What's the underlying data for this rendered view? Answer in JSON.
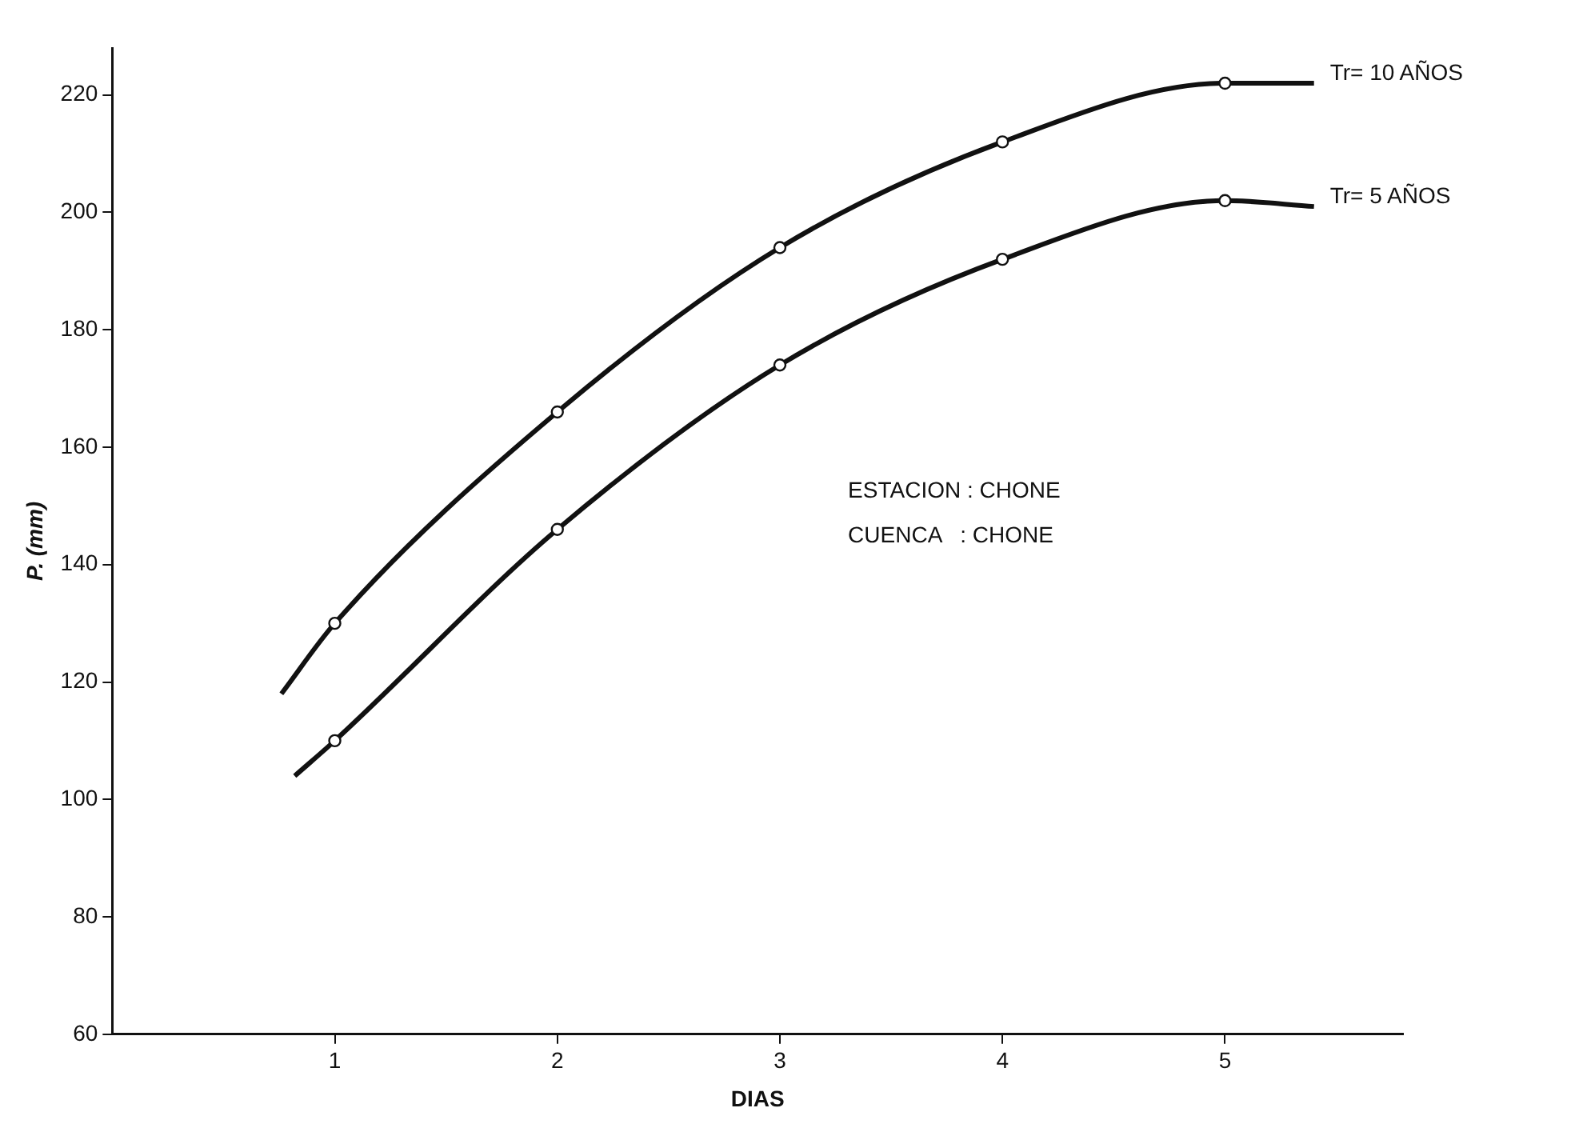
{
  "chart_data": {
    "type": "line",
    "xlabel": "DIAS",
    "ylabel": "P. (mm)",
    "xlim": [
      0,
      5.8
    ],
    "xticks": [
      1,
      2,
      3,
      4,
      5
    ],
    "ylim": [
      60,
      228
    ],
    "yticks": [
      60,
      80,
      100,
      120,
      140,
      160,
      180,
      200,
      220
    ],
    "grid": false,
    "legend": false,
    "marker": "circle",
    "annotations": [
      "ESTACION : CHONE",
      "CUENCA   : CHONE"
    ],
    "series": [
      {
        "name": "Tr= 10 AÑOS",
        "color": "#111111",
        "x": [
          0.76,
          1,
          2,
          3,
          4,
          5,
          5.4
        ],
        "values": [
          118,
          130,
          166,
          194,
          212,
          222,
          222
        ]
      },
      {
        "name": "Tr= 5 AÑOS",
        "color": "#111111",
        "x": [
          0.82,
          1,
          2,
          3,
          4,
          5,
          5.4
        ],
        "values": [
          104,
          110,
          146,
          174,
          192,
          202,
          201
        ]
      }
    ]
  }
}
